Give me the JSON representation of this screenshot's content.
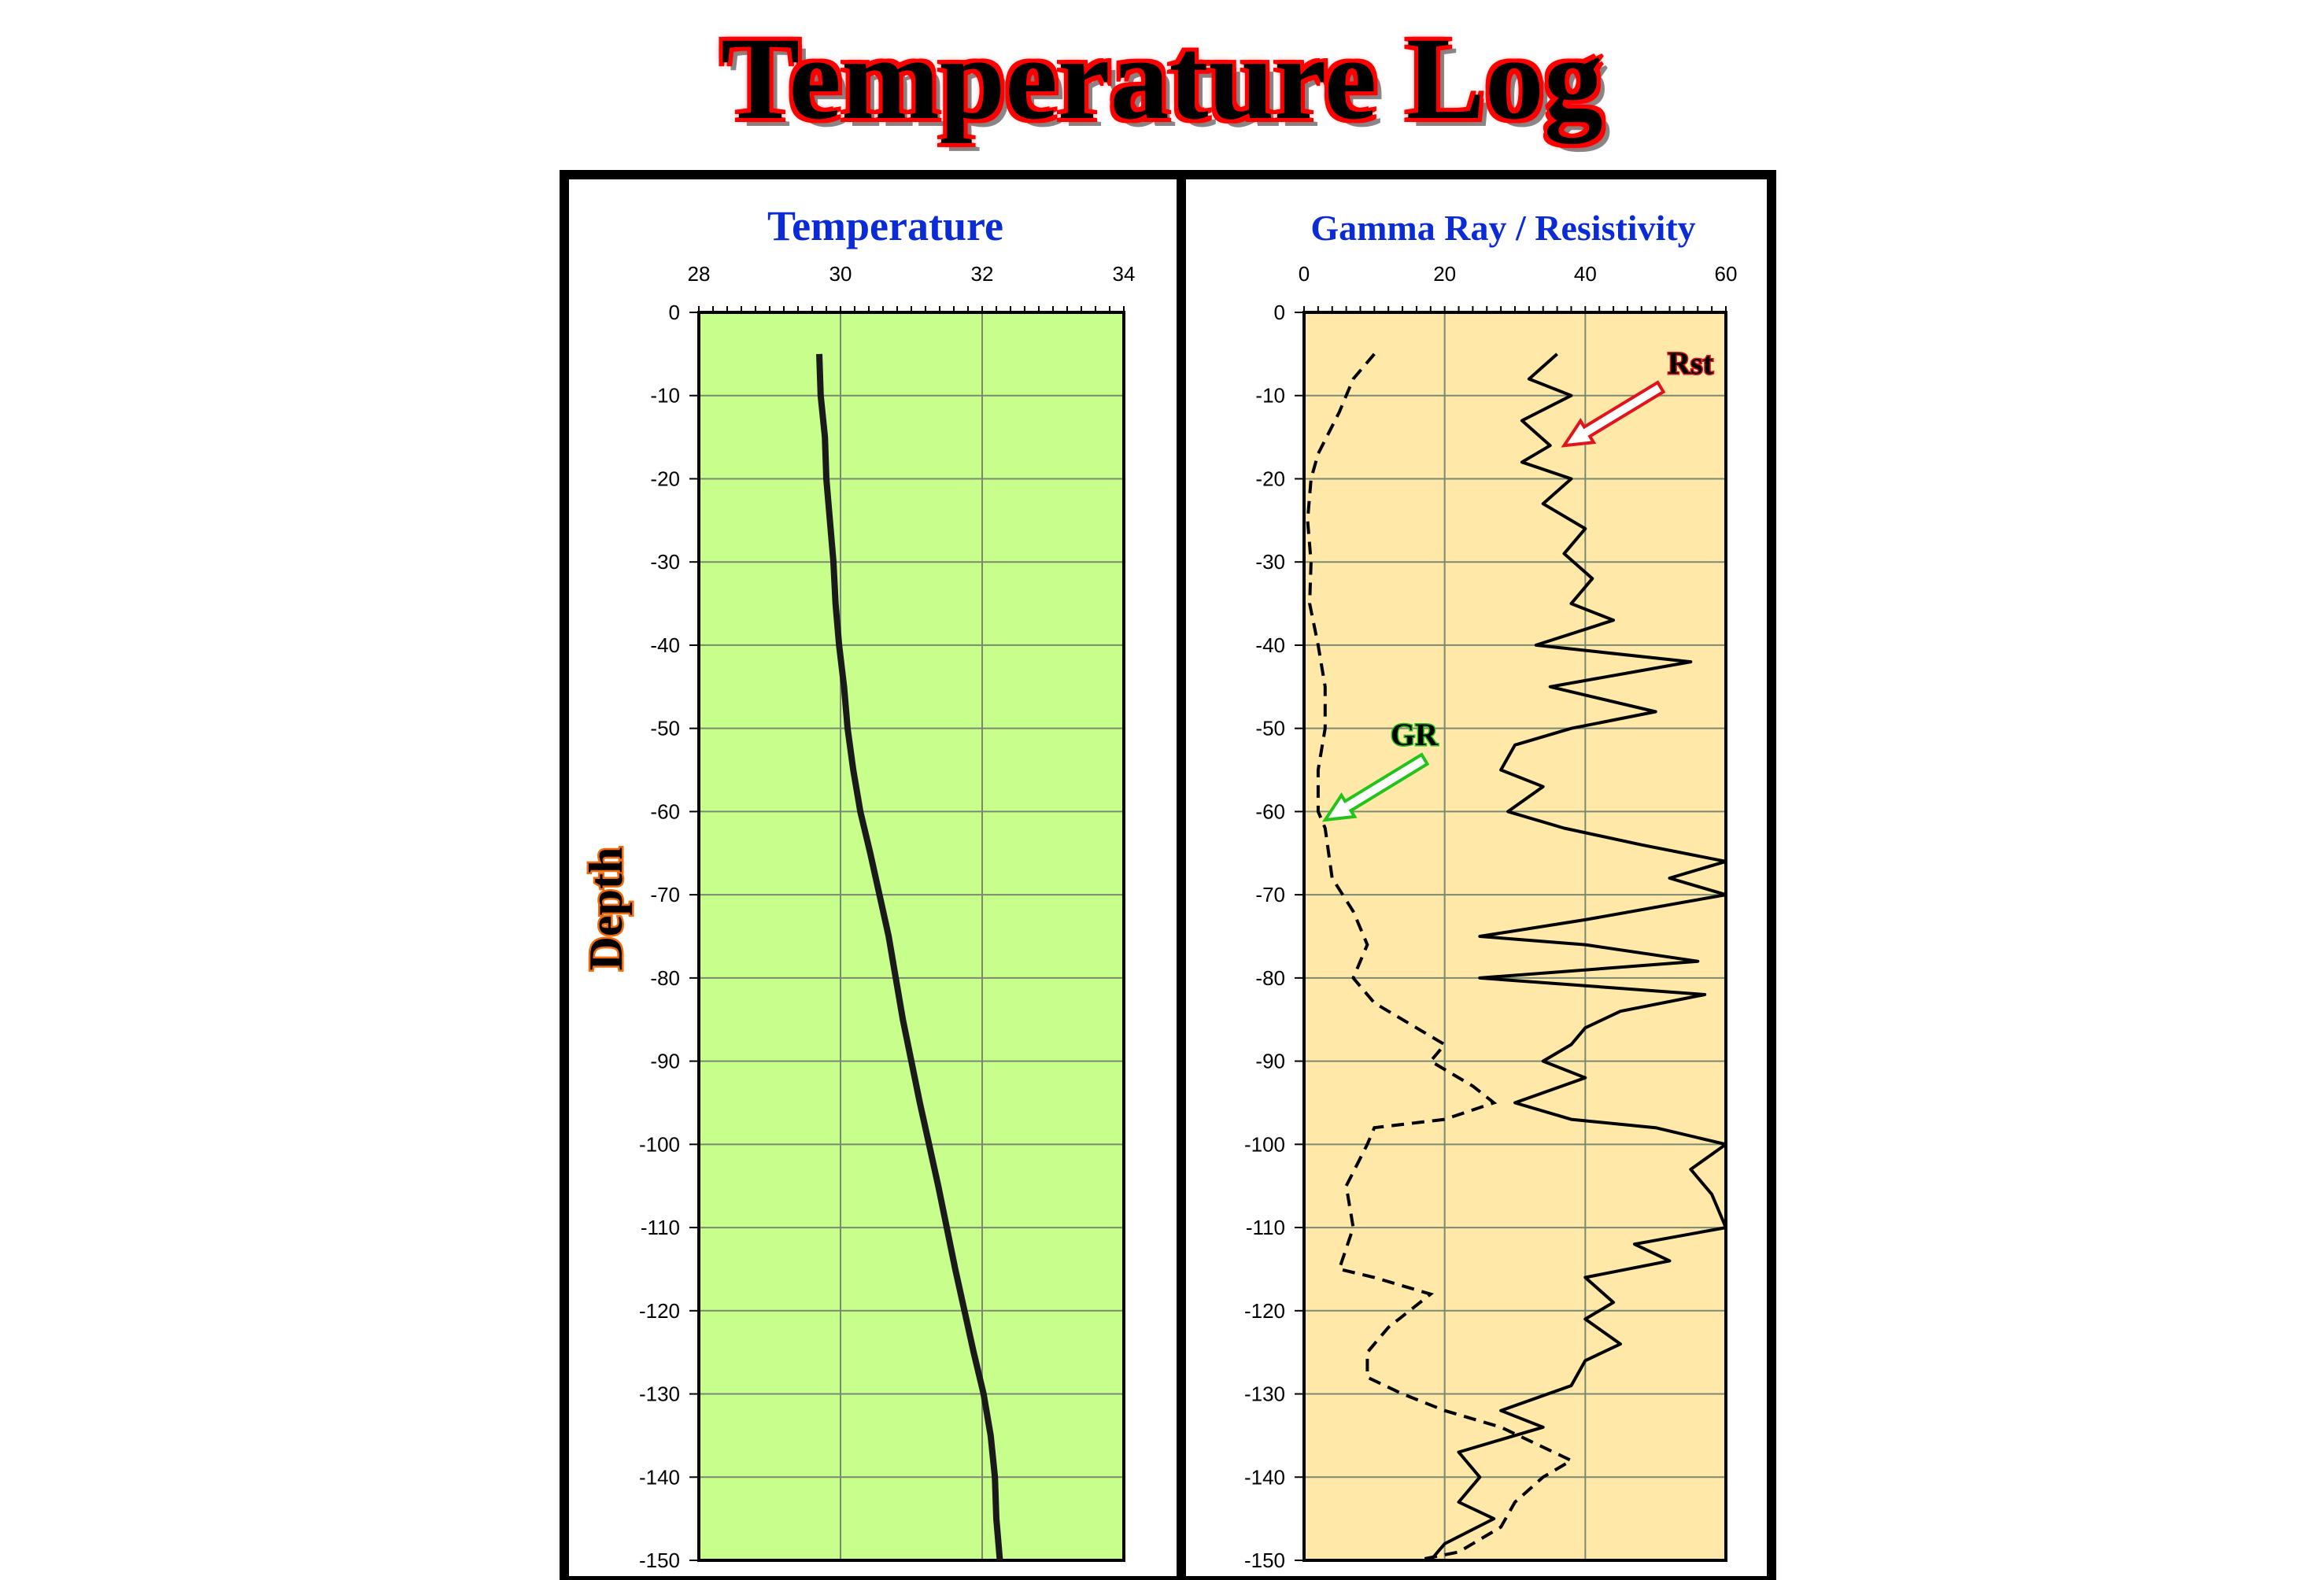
{
  "title": "Temperature Log",
  "colors": {
    "title_fill": "#000000",
    "title_outline": "#ff0000",
    "temp_track_bg": "#c8ff8c",
    "gr_rst_track_bg": "#ffe8a8",
    "track_title": "#0a2bd6",
    "depth_label_outline": "#f26a0a",
    "gr_label_outline": "#22c41a",
    "rst_label_outline": "#e0141a"
  },
  "chart_data": [
    {
      "type": "line",
      "title": "Temperature",
      "ylabel": "Depth",
      "xlim": [
        28,
        34
      ],
      "x_ticks": [
        "28",
        "30",
        "32",
        "34"
      ],
      "ylim": [
        -150,
        0
      ],
      "y_ticks": [
        "0",
        "-10",
        "-20",
        "-30",
        "-40",
        "-50",
        "-60",
        "-70",
        "-80",
        "-90",
        "-100",
        "-110",
        "-120",
        "-130",
        "-140",
        "-150"
      ],
      "grid": true,
      "series": [
        {
          "name": "",
          "points": [
            {
              "x": 29.7,
              "y": -5
            },
            {
              "x": 29.72,
              "y": -10
            },
            {
              "x": 29.78,
              "y": -15
            },
            {
              "x": 29.8,
              "y": -20
            },
            {
              "x": 29.85,
              "y": -25
            },
            {
              "x": 29.9,
              "y": -30
            },
            {
              "x": 29.93,
              "y": -35
            },
            {
              "x": 29.98,
              "y": -40
            },
            {
              "x": 30.05,
              "y": -45
            },
            {
              "x": 30.1,
              "y": -50
            },
            {
              "x": 30.18,
              "y": -55
            },
            {
              "x": 30.28,
              "y": -60
            },
            {
              "x": 30.42,
              "y": -65
            },
            {
              "x": 30.55,
              "y": -70
            },
            {
              "x": 30.68,
              "y": -75
            },
            {
              "x": 30.78,
              "y": -80
            },
            {
              "x": 30.88,
              "y": -85
            },
            {
              "x": 31.0,
              "y": -90
            },
            {
              "x": 31.12,
              "y": -95
            },
            {
              "x": 31.25,
              "y": -100
            },
            {
              "x": 31.38,
              "y": -105
            },
            {
              "x": 31.5,
              "y": -110
            },
            {
              "x": 31.62,
              "y": -115
            },
            {
              "x": 31.75,
              "y": -120
            },
            {
              "x": 31.88,
              "y": -125
            },
            {
              "x": 32.02,
              "y": -130
            },
            {
              "x": 32.12,
              "y": -135
            },
            {
              "x": 32.18,
              "y": -140
            },
            {
              "x": 32.2,
              "y": -145
            },
            {
              "x": 32.25,
              "y": -150
            }
          ]
        }
      ]
    },
    {
      "type": "line",
      "title": "Gamma Ray / Resistivity",
      "ylabel": "Depth",
      "xlim": [
        0,
        60
      ],
      "x_ticks": [
        "0",
        "20",
        "40",
        "60"
      ],
      "ylim": [
        -150,
        0
      ],
      "y_ticks": [
        "0",
        "-10",
        "-20",
        "-30",
        "-40",
        "-50",
        "-60",
        "-70",
        "-80",
        "-90",
        "-100",
        "-110",
        "-120",
        "-130",
        "-140",
        "-150"
      ],
      "grid": true,
      "annotations": [
        {
          "text": "Rst",
          "series": "Rst",
          "at": {
            "x": 37,
            "y": -16
          }
        },
        {
          "text": "GR",
          "series": "GR",
          "at": {
            "x": 3,
            "y": -61
          }
        }
      ],
      "series": [
        {
          "name": "GR",
          "style": "dashed",
          "points": [
            {
              "x": 10,
              "y": -5
            },
            {
              "x": 7,
              "y": -8
            },
            {
              "x": 5,
              "y": -12
            },
            {
              "x": 2,
              "y": -17
            },
            {
              "x": 1,
              "y": -20
            },
            {
              "x": 0.5,
              "y": -25
            },
            {
              "x": 1,
              "y": -30
            },
            {
              "x": 0.8,
              "y": -35
            },
            {
              "x": 2,
              "y": -40
            },
            {
              "x": 3,
              "y": -45
            },
            {
              "x": 3,
              "y": -50
            },
            {
              "x": 2,
              "y": -55
            },
            {
              "x": 2,
              "y": -60
            },
            {
              "x": 3,
              "y": -62
            },
            {
              "x": 4,
              "y": -68
            },
            {
              "x": 7,
              "y": -72
            },
            {
              "x": 9,
              "y": -76
            },
            {
              "x": 7,
              "y": -80
            },
            {
              "x": 10,
              "y": -83
            },
            {
              "x": 16,
              "y": -86
            },
            {
              "x": 20,
              "y": -88
            },
            {
              "x": 18,
              "y": -90
            },
            {
              "x": 24,
              "y": -93
            },
            {
              "x": 27,
              "y": -95
            },
            {
              "x": 20,
              "y": -97
            },
            {
              "x": 10,
              "y": -98
            },
            {
              "x": 9,
              "y": -100
            },
            {
              "x": 6,
              "y": -105
            },
            {
              "x": 7,
              "y": -110
            },
            {
              "x": 5,
              "y": -115
            },
            {
              "x": 10,
              "y": -116
            },
            {
              "x": 18,
              "y": -118
            },
            {
              "x": 12,
              "y": -122
            },
            {
              "x": 9,
              "y": -125
            },
            {
              "x": 9,
              "y": -128
            },
            {
              "x": 14,
              "y": -130
            },
            {
              "x": 20,
              "y": -132
            },
            {
              "x": 28,
              "y": -134
            },
            {
              "x": 33,
              "y": -136
            },
            {
              "x": 38,
              "y": -138
            },
            {
              "x": 34,
              "y": -140
            },
            {
              "x": 30,
              "y": -143
            },
            {
              "x": 28,
              "y": -146
            },
            {
              "x": 22,
              "y": -149
            },
            {
              "x": 16,
              "y": -150
            }
          ]
        },
        {
          "name": "Rst",
          "style": "solid",
          "points": [
            {
              "x": 36,
              "y": -5
            },
            {
              "x": 32,
              "y": -8
            },
            {
              "x": 38,
              "y": -10
            },
            {
              "x": 31,
              "y": -13
            },
            {
              "x": 35,
              "y": -16
            },
            {
              "x": 31,
              "y": -18
            },
            {
              "x": 38,
              "y": -20
            },
            {
              "x": 34,
              "y": -23
            },
            {
              "x": 40,
              "y": -26
            },
            {
              "x": 37,
              "y": -29
            },
            {
              "x": 41,
              "y": -32
            },
            {
              "x": 38,
              "y": -35
            },
            {
              "x": 44,
              "y": -37
            },
            {
              "x": 33,
              "y": -40
            },
            {
              "x": 55,
              "y": -42
            },
            {
              "x": 35,
              "y": -45
            },
            {
              "x": 50,
              "y": -48
            },
            {
              "x": 38,
              "y": -50
            },
            {
              "x": 30,
              "y": -52
            },
            {
              "x": 28,
              "y": -55
            },
            {
              "x": 34,
              "y": -57
            },
            {
              "x": 29,
              "y": -60
            },
            {
              "x": 37,
              "y": -62
            },
            {
              "x": 48,
              "y": -64
            },
            {
              "x": 60,
              "y": -66
            },
            {
              "x": 52,
              "y": -68
            },
            {
              "x": 60,
              "y": -70
            },
            {
              "x": 40,
              "y": -73
            },
            {
              "x": 25,
              "y": -75
            },
            {
              "x": 40,
              "y": -76
            },
            {
              "x": 56,
              "y": -78
            },
            {
              "x": 25,
              "y": -80
            },
            {
              "x": 57,
              "y": -82
            },
            {
              "x": 45,
              "y": -84
            },
            {
              "x": 40,
              "y": -86
            },
            {
              "x": 38,
              "y": -88
            },
            {
              "x": 34,
              "y": -90
            },
            {
              "x": 40,
              "y": -92
            },
            {
              "x": 30,
              "y": -95
            },
            {
              "x": 38,
              "y": -97
            },
            {
              "x": 50,
              "y": -98
            },
            {
              "x": 60,
              "y": -100
            },
            {
              "x": 55,
              "y": -103
            },
            {
              "x": 58,
              "y": -106
            },
            {
              "x": 60,
              "y": -110
            },
            {
              "x": 47,
              "y": -112
            },
            {
              "x": 52,
              "y": -114
            },
            {
              "x": 40,
              "y": -116
            },
            {
              "x": 44,
              "y": -119
            },
            {
              "x": 40,
              "y": -121
            },
            {
              "x": 45,
              "y": -124
            },
            {
              "x": 40,
              "y": -126
            },
            {
              "x": 38,
              "y": -129
            },
            {
              "x": 28,
              "y": -132
            },
            {
              "x": 34,
              "y": -134
            },
            {
              "x": 22,
              "y": -137
            },
            {
              "x": 25,
              "y": -140
            },
            {
              "x": 22,
              "y": -143
            },
            {
              "x": 27,
              "y": -145
            },
            {
              "x": 20,
              "y": -148
            },
            {
              "x": 18,
              "y": -150
            }
          ]
        }
      ]
    }
  ]
}
